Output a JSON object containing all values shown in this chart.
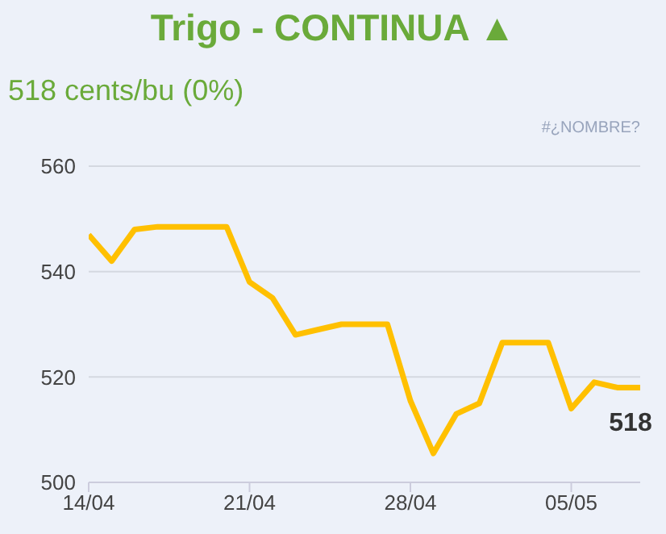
{
  "chart_data": {
    "type": "line",
    "title": "Trigo - CONTINUA ▲",
    "subtitle": "518 cents/bu (0%)",
    "annotations": [
      "#¿NOMBRE?"
    ],
    "x": [
      "--04-14",
      "--04-15",
      "--04-16",
      "--04-17",
      "--04-18",
      "--04-19",
      "--04-20",
      "--04-21",
      "--04-22",
      "--04-23",
      "--04-24",
      "--04-25",
      "--04-26",
      "--04-27",
      "--04-28",
      "--04-29",
      "--04-30",
      "--05-01",
      "--05-02",
      "--05-03",
      "--05-04",
      "--05-05",
      "--05-06",
      "--05-07",
      "--05-08"
    ],
    "series": [
      {
        "color": "#ffc000",
        "values": [
          547,
          542,
          548,
          548.5,
          548.5,
          548.5,
          548.5,
          538,
          535,
          528,
          529,
          530,
          530,
          530,
          515.5,
          505.5,
          513,
          515,
          526.5,
          526.5,
          526.5,
          514,
          519,
          518,
          518
        ],
        "value_labels": [
          null,
          null,
          null,
          null,
          null,
          null,
          null,
          null,
          null,
          null,
          null,
          null,
          null,
          null,
          null,
          null,
          null,
          null,
          null,
          null,
          null,
          null,
          null,
          null,
          "518"
        ]
      }
    ],
    "xlim": [
      "--04-14",
      "--05-08"
    ],
    "xticks": [
      {
        "value": "--04-14",
        "label": "14/04"
      },
      {
        "value": "--04-21",
        "label": "21/04"
      },
      {
        "value": "--04-28",
        "label": "28/04"
      },
      {
        "value": "--05-05",
        "label": "05/05"
      }
    ],
    "ylim": [
      500,
      560
    ],
    "yticks": [
      500,
      520,
      540,
      560
    ],
    "grid": "y",
    "legend": false,
    "marker": "none",
    "line_style": "solid"
  }
}
